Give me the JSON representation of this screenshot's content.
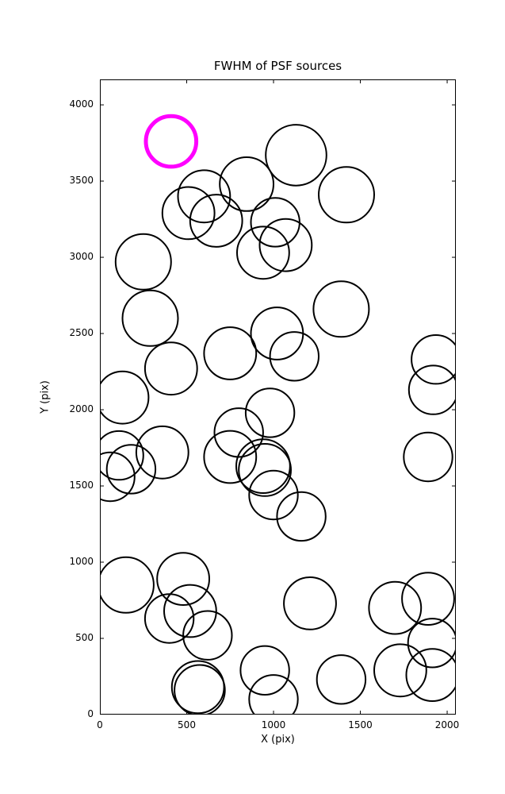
{
  "chart_data": {
    "type": "scatter",
    "title": "FWHM of PSF sources",
    "xlabel": "X (pix)",
    "ylabel": "Y (pix)",
    "xlim": [
      0,
      2050
    ],
    "ylim": [
      0,
      4167
    ],
    "x_ticks": [
      0,
      500,
      1000,
      1500,
      2000
    ],
    "y_ticks": [
      0,
      500,
      1000,
      1500,
      2000,
      2500,
      3000,
      3500,
      4000
    ],
    "grid": false,
    "legend": "none",
    "marker": "circle-outline",
    "circle_color": "#000000",
    "highlight_color": "#ff00ff",
    "highlighted_source": {
      "x": 410,
      "y": 3760,
      "r": 145
    },
    "sources": [
      {
        "x": 1130,
        "y": 3670,
        "r": 175
      },
      {
        "x": 845,
        "y": 3480,
        "r": 155
      },
      {
        "x": 1420,
        "y": 3410,
        "r": 160
      },
      {
        "x": 600,
        "y": 3400,
        "r": 150
      },
      {
        "x": 510,
        "y": 3290,
        "r": 150
      },
      {
        "x": 670,
        "y": 3240,
        "r": 150
      },
      {
        "x": 1010,
        "y": 3230,
        "r": 140
      },
      {
        "x": 940,
        "y": 3030,
        "r": 150
      },
      {
        "x": 1070,
        "y": 3080,
        "r": 150
      },
      {
        "x": 250,
        "y": 2970,
        "r": 160
      },
      {
        "x": 290,
        "y": 2600,
        "r": 160
      },
      {
        "x": 1390,
        "y": 2660,
        "r": 160
      },
      {
        "x": 1020,
        "y": 2500,
        "r": 150
      },
      {
        "x": 750,
        "y": 2370,
        "r": 150
      },
      {
        "x": 1120,
        "y": 2350,
        "r": 140
      },
      {
        "x": 410,
        "y": 2270,
        "r": 150
      },
      {
        "x": 1935,
        "y": 2330,
        "r": 140
      },
      {
        "x": 1920,
        "y": 2130,
        "r": 140
      },
      {
        "x": 130,
        "y": 2080,
        "r": 150
      },
      {
        "x": 980,
        "y": 1980,
        "r": 140
      },
      {
        "x": 800,
        "y": 1850,
        "r": 140
      },
      {
        "x": 110,
        "y": 1700,
        "r": 140
      },
      {
        "x": 360,
        "y": 1720,
        "r": 150
      },
      {
        "x": 180,
        "y": 1610,
        "r": 140
      },
      {
        "x": 60,
        "y": 1560,
        "r": 140
      },
      {
        "x": 750,
        "y": 1690,
        "r": 150
      },
      {
        "x": 940,
        "y": 1630,
        "r": 155
      },
      {
        "x": 950,
        "y": 1605,
        "r": 150
      },
      {
        "x": 1000,
        "y": 1440,
        "r": 140
      },
      {
        "x": 1160,
        "y": 1300,
        "r": 140
      },
      {
        "x": 1890,
        "y": 1690,
        "r": 140
      },
      {
        "x": 150,
        "y": 850,
        "r": 160
      },
      {
        "x": 480,
        "y": 890,
        "r": 150
      },
      {
        "x": 520,
        "y": 680,
        "r": 150
      },
      {
        "x": 400,
        "y": 630,
        "r": 140
      },
      {
        "x": 620,
        "y": 520,
        "r": 140
      },
      {
        "x": 1210,
        "y": 730,
        "r": 150
      },
      {
        "x": 1700,
        "y": 700,
        "r": 150
      },
      {
        "x": 1890,
        "y": 760,
        "r": 150
      },
      {
        "x": 1915,
        "y": 470,
        "r": 140
      },
      {
        "x": 1730,
        "y": 290,
        "r": 150
      },
      {
        "x": 1915,
        "y": 260,
        "r": 150
      },
      {
        "x": 1390,
        "y": 230,
        "r": 140
      },
      {
        "x": 950,
        "y": 290,
        "r": 140
      },
      {
        "x": 1000,
        "y": 100,
        "r": 140
      },
      {
        "x": 565,
        "y": 180,
        "r": 150
      },
      {
        "x": 575,
        "y": 160,
        "r": 145
      }
    ]
  }
}
